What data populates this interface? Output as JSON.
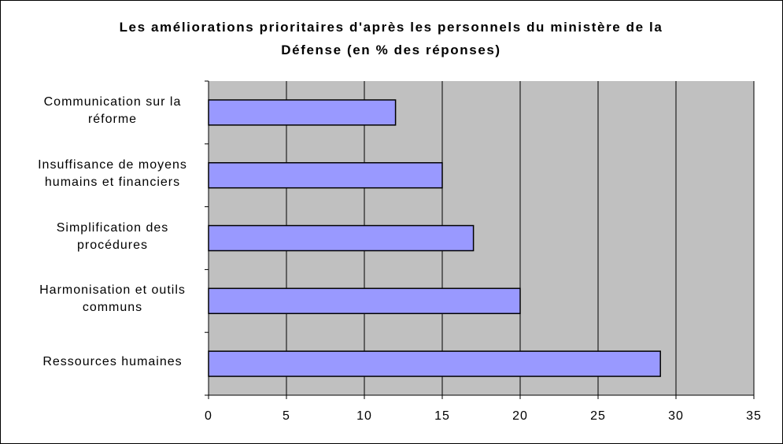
{
  "chart_data": {
    "type": "hbar",
    "title": "Les améliorations prioritaires d'après les personnels du ministère de la Défense (en % des réponses)",
    "categories": [
      "Communication sur la réforme",
      "Insuffisance de moyens humains et financiers",
      "Simplification des procédures",
      "Harmonisation et outils communs",
      "Ressources humaines"
    ],
    "values": [
      12,
      15,
      17,
      20,
      29
    ],
    "color": "#9999ff",
    "xlim": [
      0,
      35
    ],
    "xticks": [
      0,
      5,
      10,
      15,
      20,
      25,
      30,
      35
    ],
    "grid": true
  }
}
